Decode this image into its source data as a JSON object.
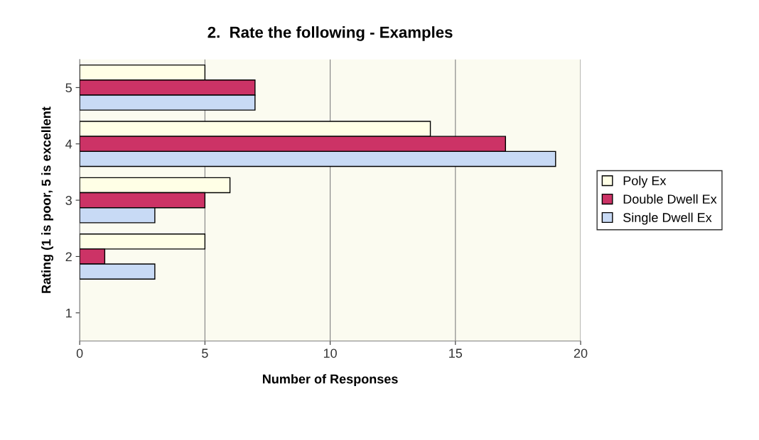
{
  "chart_data": {
    "type": "bar",
    "orientation": "horizontal",
    "title": "2.  Rate the following - Examples",
    "xlabel": "Number of Responses",
    "ylabel": "Rating (1 is poor, 5 is excellent",
    "categories": [
      "5",
      "4",
      "3",
      "2",
      "1"
    ],
    "series": [
      {
        "name": "Poly Ex",
        "color": "#ffffe6",
        "values": [
          5,
          14,
          6,
          5,
          null
        ]
      },
      {
        "name": "Double Dwell Ex",
        "color": "#cc3366",
        "values": [
          7,
          17,
          5,
          1,
          null
        ]
      },
      {
        "name": "Single Dwell Ex",
        "color": "#c8daf5",
        "values": [
          7,
          19,
          3,
          3,
          null
        ]
      }
    ],
    "xlim": [
      0,
      20
    ],
    "xticks": [
      0,
      5,
      10,
      15,
      20
    ],
    "grid": "x",
    "legend": "right"
  }
}
